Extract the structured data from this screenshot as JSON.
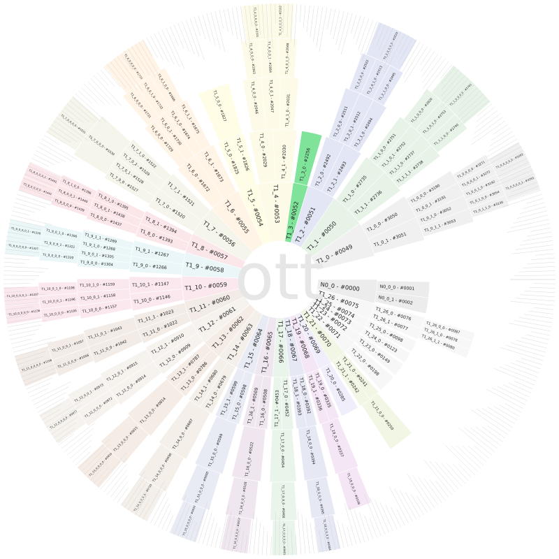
{
  "root": {
    "label": "ott"
  },
  "colors": {
    "T1_0": "#f0f0f0",
    "T1_1": "#e6f3e6",
    "T1_2": "#e3e6f5",
    "T1_3": "#7fe39a",
    "T1_4": "#fdfbe8",
    "T1_5": "#fffde6",
    "T1_6": "#fff4e6",
    "T1_7": "#f5f5ec",
    "T1_8": "#fbe6ea",
    "T1_9": "#eaf6f8",
    "T1_10": "#fbe8ee",
    "T1_11": "#f3ebe6",
    "T1_12": "#f6f3ee",
    "T1_13": "#f6ece6",
    "T1_14": "#f4efe9",
    "T1_15": "#e8eaf4",
    "T1_16": "#f0e6f0",
    "T1_17": "#e9f4ea",
    "T1_18": "#e6e8f4",
    "T1_19": "#f4e6f4",
    "T1_20": "#f0eefa",
    "T1_21": "#f2f6e4",
    "T1_22": "#f7f7f7",
    "T1_23": "#f7f7f7",
    "T1_24": "#f7f7f7",
    "T1_25": "#f7f7f7",
    "T1_26": "#f7f7f7",
    "N0_0": "#ececec"
  },
  "ring1": [
    {
      "key": "T1_0",
      "label": "T1_0 - #0049"
    },
    {
      "key": "T1_1",
      "label": "T1_1 - #0050"
    },
    {
      "key": "T1_2",
      "label": "T1_2 - #0051"
    },
    {
      "key": "T1_3",
      "label": "T1_3 - #0052"
    },
    {
      "key": "T1_4",
      "label": "T1_4 - #0053"
    },
    {
      "key": "T1_5",
      "label": "T1_5 - #0054"
    },
    {
      "key": "T1_6",
      "label": "T1_6 - #0055"
    },
    {
      "key": "T1_7",
      "label": "T1_7 - #0056"
    },
    {
      "key": "T1_8",
      "label": "T1_8 - #0057"
    },
    {
      "key": "T1_9",
      "label": "T1_9 - #0058"
    },
    {
      "key": "T1_10",
      "label": "T1_10 - #0059"
    },
    {
      "key": "T1_11",
      "label": "T1_11 - #0060"
    },
    {
      "key": "T1_12",
      "label": "T1_12 - #0061"
    },
    {
      "key": "T1_13",
      "label": "T1_13 - #0062"
    },
    {
      "key": "T1_14",
      "label": "T1_14 - #0063"
    },
    {
      "key": "T1_15",
      "label": "T1_15 - #0064"
    },
    {
      "key": "T1_16",
      "label": "T1_16 - #0065"
    },
    {
      "key": "T1_17",
      "label": "T1_17 - #0066"
    },
    {
      "key": "T1_18",
      "label": "T1_18 - #0067"
    },
    {
      "key": "T1_19",
      "label": "T1_19 - #0068"
    },
    {
      "key": "T1_20",
      "label": "T1_20 - #0069"
    },
    {
      "key": "T1_21",
      "label": "T1_21 - #0070"
    },
    {
      "key": "T1_22",
      "label": "T1_22 - #0071"
    },
    {
      "key": "T1_23",
      "label": "T1_23 - #0072"
    },
    {
      "key": "T1_24",
      "label": "T1_24 - #0073"
    },
    {
      "key": "T1_25",
      "label": "T1_25 - #0074"
    },
    {
      "key": "T1_26",
      "label": "T1_26 - #0075"
    },
    {
      "key": "N0_0",
      "label": "N0_0 - #0000"
    }
  ],
  "ring2": [
    {
      "key": "T1_0",
      "label": "T1_0_0 - #3050"
    },
    {
      "key": "T1_0",
      "label": "T1_0_1 - #3051"
    },
    {
      "key": "T1_1",
      "label": "T1_1_0 - #2735"
    },
    {
      "key": "T1_1",
      "label": "T1_1_1 - #2736"
    },
    {
      "key": "T1_2",
      "label": "T1_2_0 - #2492"
    },
    {
      "key": "T1_2",
      "label": "T1_2_1 - #2493"
    },
    {
      "key": "T1_3",
      "label": "T1_3_0 - #2256"
    },
    {
      "key": "T1_4",
      "label": "T1_4_0 - #2029"
    },
    {
      "key": "T1_4",
      "label": "T1_4_1 - #2030"
    },
    {
      "key": "T1_5",
      "label": "T1_5_0 - #1825"
    },
    {
      "key": "T1_5",
      "label": "T1_5_1 - #1826"
    },
    {
      "key": "T1_6",
      "label": "T1_6_0 - #1672"
    },
    {
      "key": "T1_6",
      "label": "T1_6_1 - #1673"
    },
    {
      "key": "T1_7",
      "label": "T1_7_0 - #1520"
    },
    {
      "key": "T1_7",
      "label": "T1_7_1 - #1521"
    },
    {
      "key": "T1_8",
      "label": "T1_8_0 - #1393"
    },
    {
      "key": "T1_8",
      "label": "T1_8_1 - #1394"
    },
    {
      "key": "T1_9",
      "label": "T1_9_0 - #1266"
    },
    {
      "key": "T1_9",
      "label": "T1_9_1 - #1267"
    },
    {
      "key": "T1_10",
      "label": "T1_10_0 - #1146"
    },
    {
      "key": "T1_10",
      "label": "T1_10_1 - #1147"
    },
    {
      "key": "T1_11",
      "label": "T1_11_0 - #1022"
    },
    {
      "key": "T1_11",
      "label": "T1_11_1 - #1023"
    },
    {
      "key": "T1_12",
      "label": "T1_12_0 - #0909"
    },
    {
      "key": "T1_12",
      "label": "T1_12_1 - #0910"
    },
    {
      "key": "T1_13",
      "label": "T1_13_0 - #0786"
    },
    {
      "key": "T1_13",
      "label": "T1_13_1 - #0787"
    },
    {
      "key": "T1_14",
      "label": "T1_14_0 - #0679"
    },
    {
      "key": "T1_14",
      "label": "T1_14_1 - #0680"
    },
    {
      "key": "T1_15",
      "label": "T1_15_0 - #0598"
    },
    {
      "key": "T1_15",
      "label": "T1_15_1 - #0599"
    },
    {
      "key": "T1_16",
      "label": "T1_16_0 - #0508"
    },
    {
      "key": "T1_16",
      "label": "T1_16_1 - #0509"
    },
    {
      "key": "T1_17",
      "label": "T1_17_0 - #0452"
    },
    {
      "key": "T1_17",
      "label": "T1_17_1 - #0453"
    },
    {
      "key": "T1_18",
      "label": "T1_18_0 - #0392"
    },
    {
      "key": "T1_18",
      "label": "T1_18_1 - #0393"
    },
    {
      "key": "T1_19",
      "label": "T1_19_0 - #0335"
    },
    {
      "key": "T1_19",
      "label": "T1_19_1 - #0336"
    },
    {
      "key": "T1_20",
      "label": "T1_20_0 - #0285"
    },
    {
      "key": "T1_21",
      "label": "T1_21_0 - #0241"
    },
    {
      "key": "T1_21",
      "label": "T1_21_1 - #0242"
    },
    {
      "key": "T1_22",
      "label": "T1_22_0 - #0198"
    },
    {
      "key": "T1_23",
      "label": "T1_23_0 - #0149"
    },
    {
      "key": "T1_24",
      "label": "T1_24_0 - #0123"
    },
    {
      "key": "T1_25",
      "label": "T1_25_0 - #0098"
    },
    {
      "key": "T1_26",
      "label": "T1_26_0 - #0076"
    },
    {
      "key": "T1_26",
      "label": "T1_26_1 - #0077"
    },
    {
      "key": "N0_0",
      "label": "N0_0_0 - #0001"
    },
    {
      "key": "N0_0",
      "label": "N0_0_1 - #0002"
    }
  ],
  "ring3": [
    {
      "key": "T1_0",
      "label": "T1_0_0_0 - #3190"
    },
    {
      "key": "T1_0",
      "label": "T1_0_0_1 - #3191"
    },
    {
      "key": "T1_0",
      "label": "T1_0_1_0 - #3052"
    },
    {
      "key": "T1_0",
      "label": "T1_0_1_1 - #3053"
    },
    {
      "key": "T1_1",
      "label": "T1_1_0_0 - #2751"
    },
    {
      "key": "T1_1",
      "label": "T1_1_0_1 - #2752"
    },
    {
      "key": "T1_1",
      "label": "T1_1_1_0 - #2737"
    },
    {
      "key": "T1_1",
      "label": "T1_1_1_1 - #2738"
    },
    {
      "key": "T1_2",
      "label": "T1_2_0_0 - #2511"
    },
    {
      "key": "T1_2",
      "label": "T1_2_0_1 - #2512"
    },
    {
      "key": "T1_2",
      "label": "T1_2_1_0 - #2494"
    },
    {
      "key": "T1_4",
      "label": "T1_4_0_0 - #2046"
    },
    {
      "key": "T1_4",
      "label": "T1_4_0_1 - #2047"
    },
    {
      "key": "T1_4",
      "label": "T1_4_1_0 - #2031"
    },
    {
      "key": "T1_5",
      "label": "T1_5_0_0 - #1827"
    },
    {
      "key": "T1_6",
      "label": "T1_6_0_0 - #1729"
    },
    {
      "key": "T1_6",
      "label": "T1_6_0_1 - #1730"
    },
    {
      "key": "T1_6",
      "label": "T1_6_1_0 - #1674"
    },
    {
      "key": "T1_6",
      "label": "T1_6_1_1 - #1675"
    },
    {
      "key": "T1_7",
      "label": "T1_7_0_0 - #1527"
    },
    {
      "key": "T1_7",
      "label": "T1_7_0_1 - #1528"
    },
    {
      "key": "T1_7",
      "label": "T1_7_0_2 - #1529"
    },
    {
      "key": "T1_7",
      "label": "T1_7_1_0 - #1522"
    },
    {
      "key": "T1_8",
      "label": "T1_8_0_0 - #1437"
    },
    {
      "key": "T1_8",
      "label": "T1_8_0_1 - #1438"
    },
    {
      "key": "T1_8",
      "label": "T1_8_1_0 - #1395"
    },
    {
      "key": "T1_9",
      "label": "T1_9_0_0 - #1304"
    },
    {
      "key": "T1_9",
      "label": "T1_9_0_1 - #1305"
    },
    {
      "key": "T1_9",
      "label": "T1_9_1_0 - #1268"
    },
    {
      "key": "T1_9",
      "label": "T1_9_1_1 - #1269"
    },
    {
      "key": "T1_10",
      "label": "T1_10_0_0 - #1157"
    },
    {
      "key": "T1_10",
      "label": "T1_10_0_1 - #1158"
    },
    {
      "key": "T1_10",
      "label": "T1_10_1_0 - #1159"
    },
    {
      "key": "T1_11",
      "label": "T1_11_0_0 - #1042"
    },
    {
      "key": "T1_11",
      "label": "T1_11_0_1 - #1043"
    },
    {
      "key": "T1_12",
      "label": "T1_12_0_0 - #0914"
    },
    {
      "key": "T1_12",
      "label": "T1_12_0_1 - #0915"
    },
    {
      "key": "T1_13",
      "label": "T1_13_0_0 - #0814"
    },
    {
      "key": "T1_14",
      "label": "T1_14_0_0 - #0687"
    },
    {
      "key": "T1_15",
      "label": "T1_15_0_0 - #0599"
    },
    {
      "key": "T1_16",
      "label": "T1_16_0_0 - #0522"
    },
    {
      "key": "T1_17",
      "label": "T1_17_0_0 - #0454"
    },
    {
      "key": "T1_18",
      "label": "T1_18_0_0 - #0394"
    },
    {
      "key": "T1_19",
      "label": "T1_19_0_0 - #0337"
    },
    {
      "key": "T1_21",
      "label": "T1_21_0_0 - #0250"
    },
    {
      "key": "T1_26",
      "label": "T1_26_0_0 - #0087"
    },
    {
      "key": "T1_26",
      "label": "T1_26_1_0 - #0078"
    },
    {
      "key": "T1_26",
      "label": "T1_26_1_1 - #0080"
    }
  ],
  "ring4": [
    {
      "key": "T1_0",
      "label": "T1_0_0_0_0 - #3271"
    },
    {
      "key": "T1_0",
      "label": "T1_0_0_0_1 - #3272"
    },
    {
      "key": "T1_0",
      "label": "T1_0_0_1_0 - #3192"
    },
    {
      "key": "T1_0",
      "label": "T1_0_1_0_0 - #3054"
    },
    {
      "key": "T1_0",
      "label": "T1_0_1_1_0 - #3130"
    },
    {
      "key": "T1_1",
      "label": "T1_1_0_0_0 - #2820"
    },
    {
      "key": "T1_1",
      "label": "T1_1_0_1_0 - #2753"
    },
    {
      "key": "T1_1",
      "label": "T1_1_1_0_0 - #2740"
    },
    {
      "key": "T1_2",
      "label": "T1_2_0_0_0 - #2522"
    },
    {
      "key": "T1_2",
      "label": "T1_2_0_1_0 - #2513"
    },
    {
      "key": "T1_2",
      "label": "T1_2_1_0_0 - #2495"
    },
    {
      "key": "T1_4",
      "label": "T1_4_0_0_0 - #2063"
    },
    {
      "key": "T1_4",
      "label": "T1_4_0_0_1 - #2064"
    },
    {
      "key": "T1_4",
      "label": "T1_4_0_1_0 - #2048"
    },
    {
      "key": "T1_6",
      "label": "T1_6_0_0_0 - #1731"
    },
    {
      "key": "T1_6",
      "label": "T1_6_0_1_0 - #1732"
    },
    {
      "key": "T1_6",
      "label": "T1_6_1_0_0 - #1686"
    },
    {
      "key": "T1_7",
      "label": "T1_7_0_0_0 - #1530"
    },
    {
      "key": "T1_8",
      "label": "T1_8_0_0_0 - #1439"
    },
    {
      "key": "T1_8",
      "label": "T1_8_0_0_1 - #1440"
    },
    {
      "key": "T1_8",
      "label": "T1_8_1_0_0 - #1396"
    },
    {
      "key": "T1_9",
      "label": "T1_9_0_0_0 - #1320"
    },
    {
      "key": "T1_9",
      "label": "T1_9_0_0_1 - #1321"
    },
    {
      "key": "T1_9",
      "label": "T1_9_0_1_0 - #1306"
    },
    {
      "key": "T1_10",
      "label": "T1_10_0_0_0 - #1195"
    },
    {
      "key": "T1_10",
      "label": "T1_10_0_0_1 - #1196"
    },
    {
      "key": "T1_10",
      "label": "T1_10_0_1_0 - #1198"
    },
    {
      "key": "T1_11",
      "label": "T1_11_0_0_0 - #1056"
    },
    {
      "key": "T1_11",
      "label": "T1_11_0_0_1 - #1057"
    },
    {
      "key": "T1_12",
      "label": "T1_12_0_0_0 - #0972"
    },
    {
      "key": "T1_12",
      "label": "T1_12_0_0_1 - #0973"
    },
    {
      "key": "T1_13",
      "label": "T1_13_0_0_0 - #0815"
    },
    {
      "key": "T1_14",
      "label": "T1_14_0_0_0 - #0698"
    },
    {
      "key": "T1_15",
      "label": "T1_15_0_0_0 - #0600"
    },
    {
      "key": "T1_16",
      "label": "T1_16_0_0_0 - #0528"
    },
    {
      "key": "T1_17",
      "label": "T1_17_0_0_0 - #0460"
    },
    {
      "key": "T1_18",
      "label": "T1_18_0_0_0 - #0395"
    },
    {
      "key": "T1_19",
      "label": "T1_19_0_0_0 - #0338"
    }
  ],
  "ring5": [
    {
      "key": "T1_0",
      "label": "T1_0_0_0_0_0 - #3292"
    },
    {
      "key": "T1_0",
      "label": "T1_0_0_0_0_1 - #3293"
    },
    {
      "key": "T1_1",
      "label": "T1_1_0_0_0_0 - #2761"
    },
    {
      "key": "T1_2",
      "label": "T1_2_0_0_0_0 - #2524"
    },
    {
      "key": "T1_4",
      "label": "T1_4_0_0_0_0 - #2101"
    },
    {
      "key": "T1_4",
      "label": "T1_4_0_0_0_1 - #2102"
    },
    {
      "key": "T1_6",
      "label": "T1_6_0_0_0_0 - #1733"
    },
    {
      "key": "T1_7",
      "label": "T1_7_0_0_0_0 - #1531"
    },
    {
      "key": "T1_8",
      "label": "T1_8_0_0_0_0 - #1441"
    },
    {
      "key": "T1_8",
      "label": "T1_8_0_0_0_1 - #1442"
    },
    {
      "key": "T1_9",
      "label": "T1_9_0_0_0_0 - #1327"
    },
    {
      "key": "T1_9",
      "label": "T1_9_0_0_0_1 - #1328"
    },
    {
      "key": "T1_10",
      "label": "T1_10_0_0_0_0 - #1236"
    },
    {
      "key": "T1_10",
      "label": "T1_10_0_0_0_1 - #1237"
    },
    {
      "key": "T1_11",
      "label": "T1_11_0_0_0_0 - #1106"
    },
    {
      "key": "T1_12",
      "label": "T1_12_0_0_0_0 - #0977"
    },
    {
      "key": "T1_13",
      "label": "T1_13_0_0_0_0 - #0816"
    },
    {
      "key": "T1_14",
      "label": "T1_14_0_0_0_0 - #0733"
    },
    {
      "key": "T1_15",
      "label": "T1_15_0_0_0_0 - #0620"
    },
    {
      "key": "T1_16",
      "label": "T1_16_0_0_0_0 - #0557"
    },
    {
      "key": "T1_17",
      "label": "T1_17_0_0_0_0 - #0461"
    },
    {
      "key": "T1_18",
      "label": "T1_18_0_0_0_0 - #0404"
    }
  ]
}
